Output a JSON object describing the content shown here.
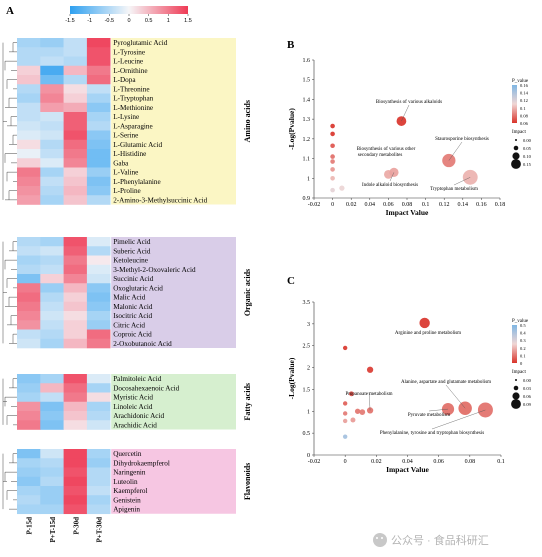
{
  "panel_labels": {
    "a": "A",
    "b": "B",
    "c": "C"
  },
  "watermark": "公众号 · 食品科研汇",
  "colors": {
    "amino_bg": "#fbf6c4",
    "organic_bg": "#d9cde8",
    "fatty_bg": "#d6efcf",
    "flavonoid_bg": "#f6c6e2",
    "heat_low": "#2ea0f0",
    "heat_mid": "#f6f6f8",
    "heat_high": "#ef3a55"
  },
  "chart_data": [
    {
      "type": "heatmap",
      "color_scale": {
        "min": -1.5,
        "max": 1.5,
        "ticks": [
          "-1.5",
          "-1",
          "-0.5",
          "0",
          "0.5",
          "1",
          "1.5"
        ]
      },
      "columns": [
        "P-15d",
        "P+T-15d",
        "P-30d",
        "P+T-30d"
      ],
      "groups": [
        {
          "name": "Amino acids",
          "rows": [
            {
              "name": "Pyroglutamic Acid",
              "values": [
                -0.6,
                -0.7,
                -0.4,
                1.4
              ]
            },
            {
              "name": "L-Tyrosine",
              "values": [
                -0.5,
                -0.5,
                -0.4,
                1.3
              ]
            },
            {
              "name": "L-Leucine",
              "values": [
                -0.5,
                -0.4,
                -0.5,
                1.3
              ]
            },
            {
              "name": "L-Ornithine",
              "values": [
                0.3,
                -1.3,
                0.5,
                1.0
              ]
            },
            {
              "name": "L-Dopa",
              "values": [
                0.4,
                -1.0,
                -0.5,
                1.1
              ]
            },
            {
              "name": "L-Threonine",
              "values": [
                -0.5,
                0.8,
                0.2,
                -0.4
              ]
            },
            {
              "name": "L-Tryptophan",
              "values": [
                -0.6,
                0.9,
                0.3,
                -0.6
              ]
            },
            {
              "name": "L-Methionine",
              "values": [
                -0.4,
                0.7,
                0.6,
                -0.8
              ]
            },
            {
              "name": "L-Lysine",
              "values": [
                -0.4,
                -0.3,
                1.2,
                -0.6
              ]
            },
            {
              "name": "L-Asparagine",
              "values": [
                -0.3,
                -0.4,
                1.2,
                -0.5
              ]
            },
            {
              "name": "L-Serine",
              "values": [
                -0.2,
                -0.3,
                1.3,
                -0.8
              ]
            },
            {
              "name": "L-Glutamic Acid",
              "values": [
                0.2,
                -0.5,
                1.1,
                -0.9
              ]
            },
            {
              "name": "L-Histidine",
              "values": [
                -0.1,
                -0.4,
                1.0,
                -1.0
              ]
            },
            {
              "name": "Gaba",
              "values": [
                0.3,
                -0.2,
                0.9,
                -1.0
              ]
            },
            {
              "name": "L-Valine",
              "values": [
                1.0,
                -0.6,
                0.3,
                -0.7
              ]
            },
            {
              "name": "L-Phenylalanine",
              "values": [
                0.9,
                -0.4,
                0.4,
                -0.9
              ]
            },
            {
              "name": "L-Proline",
              "values": [
                0.8,
                -0.5,
                0.5,
                -0.8
              ]
            },
            {
              "name": "2-Amino-3-Methylsuccinic Acid",
              "values": [
                0.7,
                -0.6,
                0.4,
                -0.5
              ]
            }
          ]
        },
        {
          "name": "Organic acids",
          "rows": [
            {
              "name": "Pimelic Acid",
              "values": [
                -0.5,
                -0.6,
                1.3,
                -0.2
              ]
            },
            {
              "name": "Suberic Acid",
              "values": [
                -0.4,
                -0.3,
                1.2,
                -0.5
              ]
            },
            {
              "name": "Ketoleucine",
              "values": [
                -0.6,
                -0.5,
                1.0,
                0.1
              ]
            },
            {
              "name": "3-Methyl-2-Oxovaleric Acid",
              "values": [
                -0.5,
                -0.4,
                1.1,
                -0.2
              ]
            },
            {
              "name": "Succinic Acid",
              "values": [
                -0.9,
                0.3,
                0.9,
                -0.3
              ]
            },
            {
              "name": "Oxoglutaric Acid",
              "values": [
                1.0,
                -0.7,
                0.5,
                -0.8
              ]
            },
            {
              "name": "Malic Acid",
              "values": [
                1.1,
                -0.5,
                0.3,
                -0.9
              ]
            },
            {
              "name": "Malonic Acid",
              "values": [
                1.0,
                -0.4,
                0.4,
                -0.8
              ]
            },
            {
              "name": "Isocitric Acid",
              "values": [
                0.9,
                -0.3,
                0.2,
                -0.6
              ]
            },
            {
              "name": "Citric Acid",
              "values": [
                0.8,
                -0.4,
                0.3,
                -0.7
              ]
            },
            {
              "name": "Coproic Acid",
              "values": [
                -0.4,
                -0.5,
                0.3,
                1.1
              ]
            },
            {
              "name": "2-Oxobutanoic Acid",
              "values": [
                -0.3,
                -0.6,
                0.5,
                1.0
              ]
            }
          ]
        },
        {
          "name": "Fatty acids",
          "rows": [
            {
              "name": "Palmitoleic Acid",
              "values": [
                -0.8,
                -0.6,
                1.3,
                -0.2
              ]
            },
            {
              "name": "Docosahexaenoic Acid",
              "values": [
                -0.7,
                0.5,
                1.1,
                -0.6
              ]
            },
            {
              "name": "Myristic Acid",
              "values": [
                -0.6,
                -0.4,
                1.0,
                0.2
              ]
            },
            {
              "name": "Linoleic Acid",
              "values": [
                0.8,
                -0.9,
                0.5,
                -0.6
              ]
            },
            {
              "name": "Arachidonic Acid",
              "values": [
                0.9,
                -0.8,
                0.4,
                -0.5
              ]
            },
            {
              "name": "Arachidic Acid",
              "values": [
                1.0,
                -0.9,
                0.2,
                -0.3
              ]
            }
          ]
        },
        {
          "name": "Flavonoids",
          "rows": [
            {
              "name": "Quercetin",
              "values": [
                -0.9,
                -0.3,
                1.4,
                -0.6
              ]
            },
            {
              "name": "Dihydrokaempferol",
              "values": [
                -0.6,
                -0.5,
                1.4,
                -0.7
              ]
            },
            {
              "name": "Naringenin",
              "values": [
                -0.7,
                -0.6,
                1.3,
                -0.5
              ]
            },
            {
              "name": "Luteolin",
              "values": [
                -0.8,
                -0.5,
                1.4,
                -0.5
              ]
            },
            {
              "name": "Kaempferol",
              "values": [
                -0.6,
                -0.7,
                1.3,
                -0.4
              ]
            },
            {
              "name": "Genistein",
              "values": [
                -0.5,
                -0.7,
                1.4,
                -0.6
              ]
            },
            {
              "name": "Apigenin",
              "values": [
                -0.6,
                -0.6,
                1.3,
                -0.5
              ]
            }
          ]
        }
      ]
    },
    {
      "type": "scatter",
      "xlabel": "Impact Value",
      "ylabel": "-Log(Pvalue)",
      "xlim": [
        -0.02,
        0.18
      ],
      "ylim": [
        0.9,
        1.6
      ],
      "xticks": [
        "-0.02",
        "0",
        "0.02",
        "0.04",
        "0.06",
        "0.08",
        "0.1",
        "0.12",
        "0.14",
        "0.16",
        "0.18"
      ],
      "yticks": [
        "0.9",
        "1",
        "1.1",
        "1.2",
        "1.3",
        "1.4",
        "1.5",
        "1.6"
      ],
      "legend_p": {
        "title": "P_value",
        "ticks": [
          "0.16",
          "0.14",
          "0.12",
          "0.1",
          "0.08",
          "0.06"
        ]
      },
      "legend_impact": {
        "title": "Impact",
        "ticks": [
          "0.00",
          "0.05",
          "0.10",
          "0.15"
        ]
      },
      "points": [
        {
          "x": 0.0,
          "y": 1.265,
          "p": 0.054
        },
        {
          "x": 0.0,
          "y": 1.225,
          "p": 0.06
        },
        {
          "x": 0.0,
          "y": 1.165,
          "p": 0.07
        },
        {
          "x": 0.0,
          "y": 1.11,
          "p": 0.078
        },
        {
          "x": 0.0,
          "y": 1.085,
          "p": 0.082
        },
        {
          "x": 0.0,
          "y": 1.045,
          "p": 0.09
        },
        {
          "x": 0.0,
          "y": 1.0,
          "p": 0.1
        },
        {
          "x": 0.0,
          "y": 0.94,
          "p": 0.115
        },
        {
          "x": 0.01,
          "y": 0.95,
          "p": 0.112
        },
        {
          "x": 0.06,
          "y": 1.02,
          "p": 0.096
        },
        {
          "x": 0.066,
          "y": 1.03,
          "p": 0.094
        },
        {
          "x": 0.074,
          "y": 1.29,
          "p": 0.051
        },
        {
          "x": 0.125,
          "y": 1.09,
          "p": 0.082
        },
        {
          "x": 0.148,
          "y": 1.005,
          "p": 0.099
        }
      ],
      "annotations": [
        {
          "text": "Biosynthesis of various alkaloids",
          "x": 0.074,
          "y": 1.29
        },
        {
          "text": "Staurosporine biosynthesis",
          "x": 0.125,
          "y": 1.09
        },
        {
          "text": "Biosynthesis of various other",
          "x": 0.0,
          "y": 1.09
        },
        {
          "text": "secondary metabolites",
          "x": 0.0,
          "y": 1.09
        },
        {
          "text": "Indole alkaloid biosynthesis",
          "x": 0.066,
          "y": 1.03
        },
        {
          "text": "Tryptophan metabolism",
          "x": 0.148,
          "y": 1.005
        }
      ]
    },
    {
      "type": "scatter",
      "xlabel": "Impact Value",
      "ylabel": "-Log(Pvalue)",
      "xlim": [
        -0.02,
        0.1
      ],
      "ylim": [
        0,
        3.5
      ],
      "xticks": [
        "-0.02",
        "0",
        "0.02",
        "0.04",
        "0.06",
        "0.08",
        "0.1"
      ],
      "yticks": [
        "0",
        "0.5",
        "1",
        "1.5",
        "2",
        "2.5",
        "3",
        "3.5"
      ],
      "legend_p": {
        "title": "P_value",
        "ticks": [
          "0.5",
          "0.4",
          "0.3",
          "0.2",
          "0.1",
          "0"
        ]
      },
      "legend_impact": {
        "title": "Impact",
        "ticks": [
          "0.00",
          "0.03",
          "0.06",
          "0.09"
        ]
      },
      "points": [
        {
          "x": 0.0,
          "y": 2.45,
          "p": 0.004
        },
        {
          "x": 0.016,
          "y": 1.95,
          "p": 0.011
        },
        {
          "x": 0.051,
          "y": 3.02,
          "p": 0.001
        },
        {
          "x": 0.004,
          "y": 1.4,
          "p": 0.04
        },
        {
          "x": 0.0,
          "y": 1.18,
          "p": 0.066
        },
        {
          "x": 0.0,
          "y": 0.95,
          "p": 0.11
        },
        {
          "x": 0.0,
          "y": 0.78,
          "p": 0.166
        },
        {
          "x": 0.005,
          "y": 0.8,
          "p": 0.158
        },
        {
          "x": 0.008,
          "y": 1.0,
          "p": 0.1
        },
        {
          "x": 0.011,
          "y": 0.98,
          "p": 0.105
        },
        {
          "x": 0.0,
          "y": 0.42,
          "p": 0.42
        },
        {
          "x": 0.016,
          "y": 1.02,
          "p": 0.095
        },
        {
          "x": 0.066,
          "y": 1.05,
          "p": 0.089
        },
        {
          "x": 0.077,
          "y": 1.07,
          "p": 0.085
        },
        {
          "x": 0.09,
          "y": 1.03,
          "p": 0.093
        }
      ],
      "annotations": [
        {
          "text": "Arginine and proline metabolism",
          "x": 0.051,
          "y": 3.02
        },
        {
          "text": "Alanine, aspartate and glutamate metabolism",
          "x": 0.077,
          "y": 1.07
        },
        {
          "text": "Propanoate metabolism",
          "x": 0.016,
          "y": 1.02
        },
        {
          "text": "Pyruvate metabolism",
          "x": 0.066,
          "y": 1.05
        },
        {
          "text": "Phenylalanine, tyrosine and tryptophan biosynthesis",
          "x": 0.09,
          "y": 1.03
        }
      ]
    }
  ]
}
